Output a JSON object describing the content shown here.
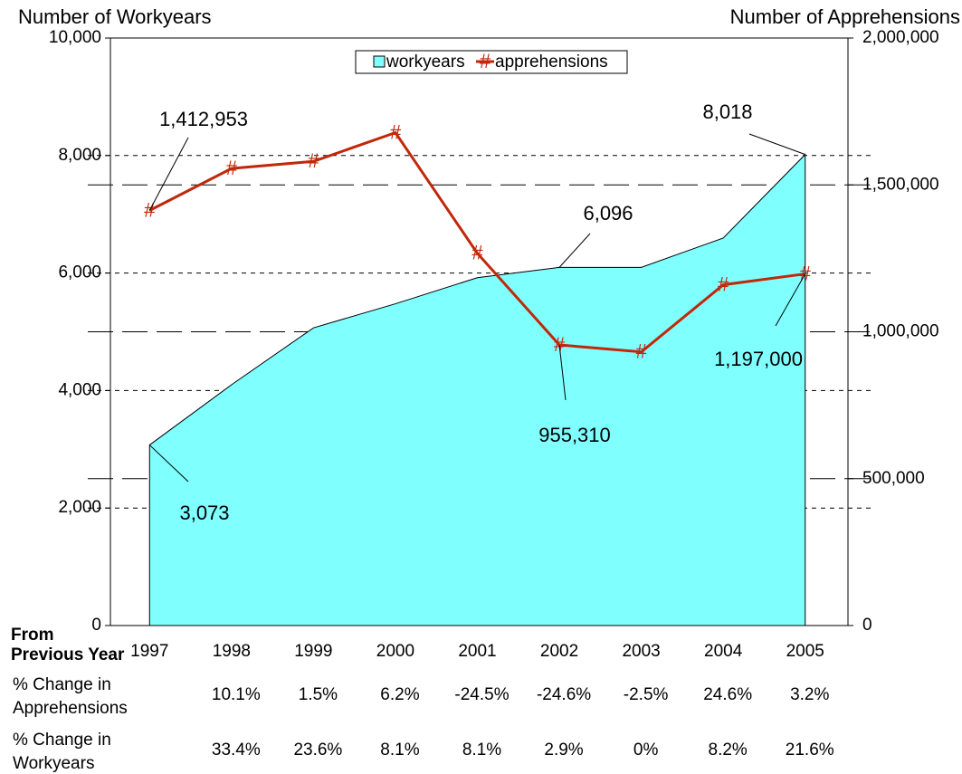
{
  "chart_data": {
    "type": "area-line",
    "y_label": "Number of Workyears",
    "y2_label": "Number of Apprehensions",
    "categories": [
      "1997",
      "1998",
      "1999",
      "2000",
      "2001",
      "2002",
      "2003",
      "2004",
      "2005"
    ],
    "series": [
      {
        "name": "workyears",
        "type": "area",
        "color": "#80ffff",
        "values": [
          3073,
          4099,
          5067,
          5477,
          5921,
          6096,
          6096,
          6596,
          8018
        ],
        "value_labels": [
          "3,073",
          null,
          null,
          null,
          null,
          "6,096",
          null,
          null,
          "8,018"
        ]
      },
      {
        "name": "apprehensions",
        "type": "line",
        "axis": "y2",
        "color": "#c0280a",
        "marker": "#",
        "values": [
          1412953,
          1556000,
          1580000,
          1678000,
          1267000,
          955310,
          931400,
          1160000,
          1197000
        ],
        "value_labels": [
          "1,412,953",
          null,
          null,
          null,
          null,
          "955,310",
          null,
          null,
          "1,197,000"
        ]
      }
    ],
    "ylim": [
      0,
      10000
    ],
    "yticks": [
      0,
      {
        "value": 2000,
        "label": "2,000"
      },
      {
        "value": 4000,
        "label": "4,000"
      },
      {
        "value": 6000,
        "label": "6,000"
      },
      {
        "value": 8000,
        "label": "8,000"
      },
      {
        "value": 10000,
        "label": "10,000"
      }
    ],
    "y2lim": [
      0,
      2000000
    ],
    "y2ticks": [
      0,
      {
        "value": 500000,
        "label": "500,000"
      },
      {
        "value": 1000000,
        "label": "1,000,000"
      },
      {
        "value": 1500000,
        "label": "1,500,000"
      },
      {
        "value": 2000000,
        "label": "2,000,000"
      }
    ],
    "grid": true,
    "legend": "top",
    "table": {
      "title": [
        "From",
        "Previous Year"
      ],
      "rows": [
        {
          "label": [
            "% Change in",
            "Apprehensions"
          ],
          "values": [
            "10.1%",
            "1.5%",
            "6.2%",
            "-24.5%",
            "-24.6%",
            "-2.5%",
            "24.6%",
            "3.2%"
          ]
        },
        {
          "label": [
            "% Change in",
            "Workyears"
          ],
          "values": [
            "33.4%",
            "23.6%",
            "8.1%",
            "8.1%",
            "2.9%",
            "0%",
            "8.2%",
            "21.6%"
          ]
        }
      ]
    }
  }
}
